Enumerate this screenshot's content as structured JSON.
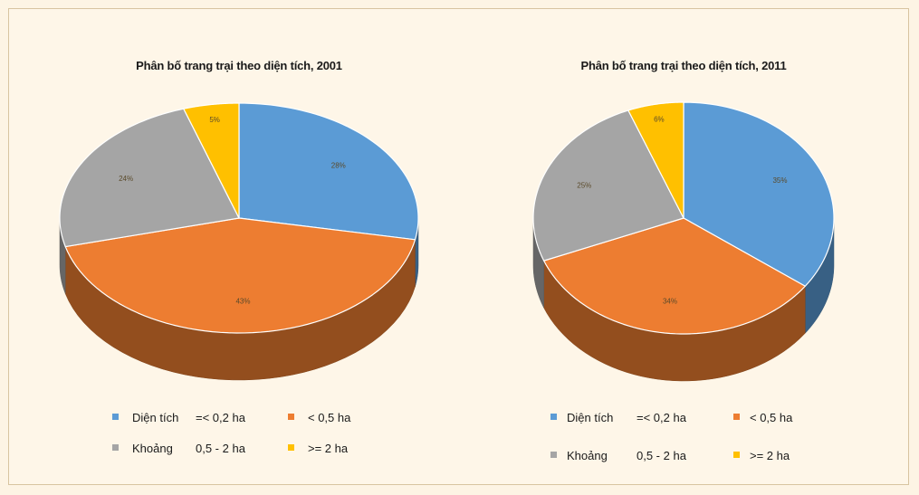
{
  "colors": {
    "page_background": "#fdf4e4",
    "blue": "#5b9bd5",
    "orange": "#ed7d31",
    "gray": "#a5a5a5",
    "yellow": "#ffc000"
  },
  "chart_data": [
    {
      "type": "pie",
      "style": "3d",
      "title": "Phân bố trang trại theo diện tích, 2001",
      "slices": [
        {
          "key": "le_0_2",
          "value": 28,
          "label": "28%",
          "color": "#5b9bd5"
        },
        {
          "key": "lt_0_5",
          "value": 43,
          "label": "43%",
          "color": "#ed7d31"
        },
        {
          "key": "mid",
          "value": 24,
          "label": "24%",
          "color": "#a5a5a5"
        },
        {
          "key": "ge_2",
          "value": 5,
          "label": "5%",
          "color": "#ffc000"
        }
      ],
      "legend": [
        {
          "key": "le_0_2",
          "text_a": "Diện tích",
          "text_b": "=< 0,2 ha",
          "color": "#5b9bd5"
        },
        {
          "key": "lt_0_5",
          "text_a": "< 0,5 ha",
          "text_b": "",
          "color": "#ed7d31"
        },
        {
          "key": "mid",
          "text_a": "Khoảng",
          "text_b": "0,5 - 2 ha",
          "color": "#a5a5a5"
        },
        {
          "key": "ge_2",
          "text_a": ">= 2 ha",
          "text_b": "",
          "color": "#ffc000"
        }
      ],
      "legend_placement": "bottom"
    },
    {
      "type": "pie",
      "style": "3d",
      "title": "Phân bố trang trại theo diện tích, 2011",
      "slices": [
        {
          "key": "le_0_2",
          "value": 35,
          "label": "35%",
          "color": "#5b9bd5"
        },
        {
          "key": "lt_0_5",
          "value": 34,
          "label": "34%",
          "color": "#ed7d31"
        },
        {
          "key": "mid",
          "value": 25,
          "label": "25%",
          "color": "#a5a5a5"
        },
        {
          "key": "ge_2",
          "value": 6,
          "label": "6%",
          "color": "#ffc000"
        }
      ],
      "legend": [
        {
          "key": "le_0_2",
          "text_a": "Diện tích",
          "text_b": "=< 0,2 ha",
          "color": "#5b9bd5"
        },
        {
          "key": "lt_0_5",
          "text_a": "< 0,5 ha",
          "text_b": "",
          "color": "#ed7d31"
        },
        {
          "key": "mid",
          "text_a": "Khoảng",
          "text_b": "0,5 - 2 ha",
          "color": "#a5a5a5"
        },
        {
          "key": "ge_2",
          "text_a": ">= 2 ha",
          "text_b": "",
          "color": "#ffc000"
        }
      ],
      "legend_placement": "bottom"
    }
  ]
}
